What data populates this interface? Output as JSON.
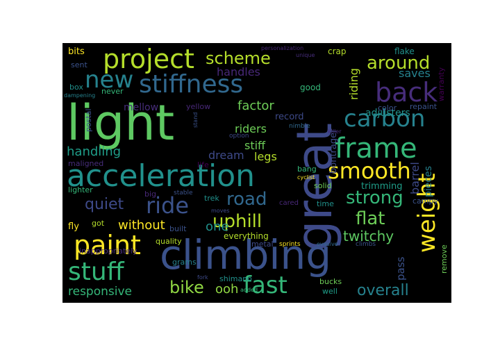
{
  "background": "#000000",
  "palette": {
    "purple": "#440154",
    "indigo": "#472c7a",
    "blue": "#3b518b",
    "steel": "#2c718e",
    "teal": "#21908d",
    "sea": "#27ad81",
    "green": "#5cc863",
    "lime": "#aadc32",
    "yellow": "#fde725"
  },
  "words": [
    {
      "id": "word-light",
      "text": "light",
      "color": "#5ec962"
    },
    {
      "id": "word-great",
      "text": "great",
      "color": "#3e4a89"
    },
    {
      "id": "word-climbing",
      "text": "climbing",
      "color": "#3b528b"
    },
    {
      "id": "word-acceleration",
      "text": "acceleration",
      "color": "#21918c"
    },
    {
      "id": "word-project",
      "text": "project",
      "color": "#b5de2b"
    },
    {
      "id": "word-stiffness",
      "text": "stiffness",
      "color": "#31688e"
    },
    {
      "id": "word-frame",
      "text": "frame",
      "color": "#35b779"
    },
    {
      "id": "word-carbon",
      "text": "carbon",
      "color": "#26828e"
    },
    {
      "id": "word-back",
      "text": "back",
      "color": "#472d7b"
    },
    {
      "id": "word-smooth",
      "text": "smooth",
      "color": "#fde725"
    },
    {
      "id": "word-new",
      "text": "new",
      "color": "#26828e"
    },
    {
      "id": "word-scheme",
      "text": "scheme",
      "color": "#b5de2b"
    },
    {
      "id": "word-around",
      "text": "around",
      "color": "#b5de2b"
    },
    {
      "id": "word-paint",
      "text": "paint",
      "color": "#fde725"
    },
    {
      "id": "word-ride",
      "text": "ride",
      "color": "#3b528b"
    },
    {
      "id": "word-stuff",
      "text": "stuff",
      "color": "#35b779"
    },
    {
      "id": "word-fast",
      "text": "fast",
      "color": "#35b779"
    },
    {
      "id": "word-weight",
      "text": "weight",
      "color": "#fde725"
    },
    {
      "id": "word-strong",
      "text": "strong",
      "color": "#35b779"
    },
    {
      "id": "word-road",
      "text": "road",
      "color": "#31688e"
    },
    {
      "id": "word-uphill",
      "text": "uphill",
      "color": "#b5de2b"
    },
    {
      "id": "word-flat",
      "text": "flat",
      "color": "#6ece58"
    },
    {
      "id": "word-quiet",
      "text": "quiet",
      "color": "#3e4a89"
    },
    {
      "id": "word-bike",
      "text": "bike",
      "color": "#90d743"
    },
    {
      "id": "word-overall",
      "text": "overall",
      "color": "#26828e"
    },
    {
      "id": "word-twitchy",
      "text": "twitchy",
      "color": "#5ec962"
    },
    {
      "id": "word-handling",
      "text": "handling",
      "color": "#1f9e89"
    },
    {
      "id": "word-responsive",
      "text": "responsive",
      "color": "#35b779"
    },
    {
      "id": "word-without",
      "text": "without",
      "color": "#fde725"
    },
    {
      "id": "word-ooh",
      "text": "ooh",
      "color": "#90d743"
    },
    {
      "id": "word-one",
      "text": "one",
      "color": "#21918c"
    },
    {
      "id": "word-riders",
      "text": "riders",
      "color": "#6ece58"
    },
    {
      "id": "word-factor",
      "text": "factor",
      "color": "#6ece58"
    },
    {
      "id": "word-handles",
      "text": "handles",
      "color": "#482878"
    },
    {
      "id": "word-stiff",
      "text": "stiff",
      "color": "#6ece58"
    },
    {
      "id": "word-legs",
      "text": "legs",
      "color": "#b5de2b"
    },
    {
      "id": "word-dream",
      "text": "dream",
      "color": "#3e4a89"
    },
    {
      "id": "word-riding",
      "text": "riding",
      "color": "#b5de2b"
    },
    {
      "id": "word-saves",
      "text": "saves",
      "color": "#26828e"
    },
    {
      "id": "word-adjusters",
      "text": "adjusters",
      "color": "#21918c"
    },
    {
      "id": "word-barrel",
      "text": "barrel",
      "color": "#3e4a89"
    },
    {
      "id": "word-pieces",
      "text": "pieces",
      "color": "#26828e"
    },
    {
      "id": "word-trimming",
      "text": "trimming",
      "color": "#1f9e89"
    },
    {
      "id": "word-pass",
      "text": "pass",
      "color": "#3b528b"
    },
    {
      "id": "word-mellow",
      "text": "mellow",
      "color": "#472d7b"
    },
    {
      "id": "word-bontrager",
      "text": "bontrager",
      "color": "#3e4a89"
    },
    {
      "id": "word-record",
      "text": "record",
      "color": "#3e4a89"
    },
    {
      "id": "word-bits",
      "text": "bits",
      "color": "#fde725"
    },
    {
      "id": "word-sent",
      "text": "sent",
      "color": "#3b528b"
    },
    {
      "id": "word-box",
      "text": "box",
      "color": "#21918c"
    },
    {
      "id": "word-never",
      "text": "never",
      "color": "#35b779"
    },
    {
      "id": "word-dampening",
      "text": "dampening",
      "color": "#26828e"
    },
    {
      "id": "word-crap",
      "text": "crap",
      "color": "#b5de2b"
    },
    {
      "id": "word-flake",
      "text": "flake",
      "color": "#21918c"
    },
    {
      "id": "word-good",
      "text": "good",
      "color": "#35b779"
    },
    {
      "id": "word-warranty",
      "text": "warranty",
      "color": "#440154"
    },
    {
      "id": "word-personalization",
      "text": "personalization",
      "color": "#482878"
    },
    {
      "id": "word-unique",
      "text": "unique",
      "color": "#472d7b"
    },
    {
      "id": "word-yellow",
      "text": "yellow",
      "color": "#482878"
    },
    {
      "id": "word-postal",
      "text": "postal",
      "color": "#3b528b"
    },
    {
      "id": "word-color",
      "text": "color",
      "color": "#3b528b"
    },
    {
      "id": "word-repaint",
      "text": "repaint",
      "color": "#3b528b"
    },
    {
      "id": "word-nimble",
      "text": "nimble",
      "color": "#31688e"
    },
    {
      "id": "word-killer",
      "text": "killer",
      "color": "#472d7b"
    },
    {
      "id": "word-option",
      "text": "option",
      "color": "#3e4a89"
    },
    {
      "id": "word-stand",
      "text": "stand",
      "color": "#3b528b"
    },
    {
      "id": "word-maligned",
      "text": "maligned",
      "color": "#472d7b"
    },
    {
      "id": "word-life",
      "text": "life",
      "color": "#440154"
    },
    {
      "id": "word-bang",
      "text": "bang",
      "color": "#35b779"
    },
    {
      "id": "word-cyclist",
      "text": "cyclist",
      "color": "#fde725"
    },
    {
      "id": "word-solid",
      "text": "solid",
      "color": "#6ece58"
    },
    {
      "id": "word-campy",
      "text": "campy",
      "color": "#3b528b"
    },
    {
      "id": "word-lighter",
      "text": "lighter",
      "color": "#35b779"
    },
    {
      "id": "word-big",
      "text": "big",
      "color": "#482878"
    },
    {
      "id": "word-stable",
      "text": "stable",
      "color": "#3b528b"
    },
    {
      "id": "word-fly",
      "text": "fly",
      "color": "#fde725"
    },
    {
      "id": "word-got",
      "text": "got",
      "color": "#b5de2b"
    },
    {
      "id": "word-trek",
      "text": "trek",
      "color": "#21918c"
    },
    {
      "id": "word-moves",
      "text": "moves",
      "color": "#3e4a89"
    },
    {
      "id": "word-cared",
      "text": "cared",
      "color": "#482878"
    },
    {
      "id": "word-time",
      "text": "time",
      "color": "#21918c"
    },
    {
      "id": "word-built",
      "text": "built",
      "color": "#3b528b"
    },
    {
      "id": "word-quality",
      "text": "quality",
      "color": "#b5de2b"
    },
    {
      "id": "word-everything",
      "text": "everything",
      "color": "#b5de2b"
    },
    {
      "id": "word-sprints",
      "text": "sprints",
      "color": "#fde725"
    },
    {
      "id": "word-evasive",
      "text": "evasive",
      "color": "#31688e"
    },
    {
      "id": "word-climbs",
      "text": "climbs",
      "color": "#3b528b"
    },
    {
      "id": "word-remove",
      "text": "remove",
      "color": "#6ece58"
    },
    {
      "id": "word-inappropriately",
      "text": "inappropriately",
      "color": "#472d7b"
    },
    {
      "id": "word-metal",
      "text": "metal",
      "color": "#3e4a89"
    },
    {
      "id": "word-grams",
      "text": "grams",
      "color": "#26828e"
    },
    {
      "id": "word-fork",
      "text": "fork",
      "color": "#3e4a89"
    },
    {
      "id": "word-shimano",
      "text": "shimano",
      "color": "#21918c"
    },
    {
      "id": "word-added",
      "text": "added",
      "color": "#35b779"
    },
    {
      "id": "word-bucks",
      "text": "bucks",
      "color": "#6ece58"
    },
    {
      "id": "word-well",
      "text": "well",
      "color": "#1f9e89"
    }
  ]
}
